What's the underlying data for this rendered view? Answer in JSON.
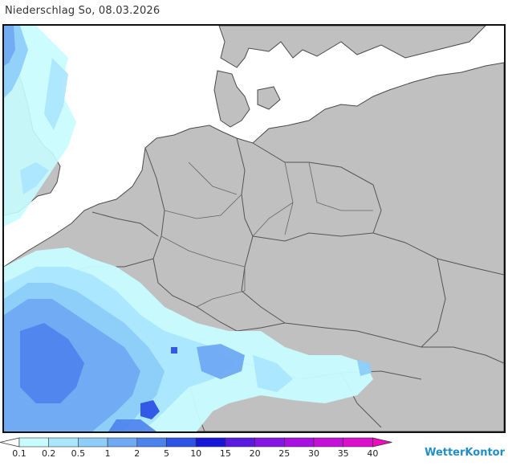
{
  "header": {
    "title": "Niederschlag So, 08.03.2026"
  },
  "legend": {
    "values": [
      "0.1",
      "0.2",
      "0.5",
      "1",
      "2",
      "5",
      "10",
      "15",
      "20",
      "25",
      "30",
      "35",
      "40"
    ],
    "colors": [
      "#ffffff",
      "#c8fcff",
      "#aae6ff",
      "#8ccdf9",
      "#6fa9f3",
      "#4c82ed",
      "#2c52e6",
      "#1717d8",
      "#5a1ae0",
      "#8516e4",
      "#a911e0",
      "#c511d7",
      "#dd0fcf",
      "#f10ac0"
    ]
  },
  "brand": {
    "name": "WetterKontor"
  },
  "colors": {
    "land": "#c0c0c0",
    "sea": "#ffffff",
    "border": "#555555",
    "coast": "#4a4a4a"
  }
}
